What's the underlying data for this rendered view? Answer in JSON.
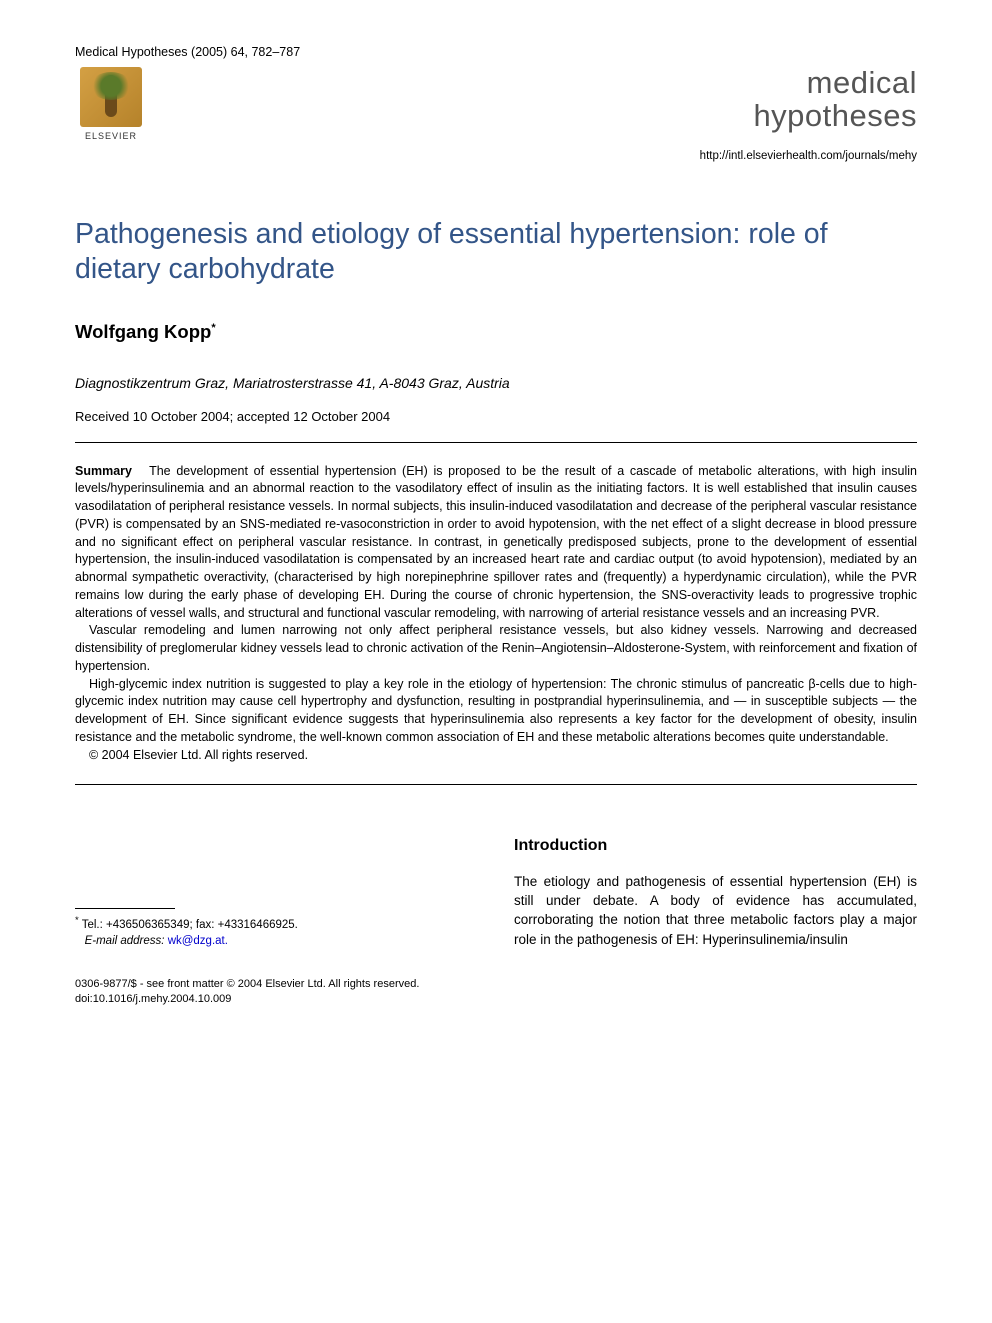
{
  "header": {
    "citation": "Medical Hypotheses (2005) 64, 782–787",
    "publisher_name": "ELSEVIER",
    "journal_name_line1": "medical",
    "journal_name_line2": "hypotheses",
    "journal_url": "http://intl.elsevierhealth.com/journals/mehy"
  },
  "article": {
    "title": "Pathogenesis and etiology of essential hypertension: role of dietary carbohydrate",
    "author": "Wolfgang Kopp",
    "author_marker": "*",
    "affiliation": "Diagnostikzentrum Graz, Mariatrosterstrasse 41, A-8043 Graz, Austria",
    "dates": "Received 10 October 2004; accepted 12 October 2004"
  },
  "summary": {
    "label": "Summary",
    "p1": "The development of essential hypertension (EH) is proposed to be the result of a cascade of metabolic alterations, with high insulin levels/hyperinsulinemia and an abnormal reaction to the vasodilatory effect of insulin as the initiating factors. It is well established that insulin causes vasodilatation of peripheral resistance vessels. In normal subjects, this insulin-induced vasodilatation and decrease of the peripheral vascular resistance (PVR) is compensated by an SNS-mediated re-vasoconstriction in order to avoid hypotension, with the net effect of a slight decrease in blood pressure and no significant effect on peripheral vascular resistance. In contrast, in genetically predisposed subjects, prone to the development of essential hypertension, the insulin-induced vasodilatation is compensated by an increased heart rate and cardiac output (to avoid hypotension), mediated by an abnormal sympathetic overactivity, (characterised by high norepinephrine spillover rates and (frequently) a hyperdynamic circulation), while the PVR remains low during the early phase of developing EH. During the course of chronic hypertension, the SNS-overactivity leads to progressive trophic alterations of vessel walls, and structural and functional vascular remodeling, with narrowing of arterial resistance vessels and an increasing PVR.",
    "p2": "Vascular remodeling and lumen narrowing not only affect peripheral resistance vessels, but also kidney vessels. Narrowing and decreased distensibility of preglomerular kidney vessels lead to chronic activation of the Renin–Angiotensin–Aldosterone-System, with reinforcement and fixation of hypertension.",
    "p3": "High-glycemic index nutrition is suggested to play a key role in the etiology of hypertension: The chronic stimulus of pancreatic β-cells due to high-glycemic index nutrition may cause cell hypertrophy and dysfunction, resulting in postprandial hyperinsulinemia, and — in susceptible subjects — the development of EH. Since significant evidence suggests that hyperinsulinemia also represents a key factor for the development of obesity, insulin resistance and the metabolic syndrome, the well-known common association of EH and these metabolic alterations becomes quite understandable.",
    "copyright": "© 2004 Elsevier Ltd. All rights reserved."
  },
  "footnote": {
    "marker": "*",
    "contact": "Tel.: +436506365349; fax: +43316466925.",
    "email_label": "E-mail address:",
    "email": "wk@dzg.at."
  },
  "body": {
    "section_heading": "Introduction",
    "intro_p1": "The etiology and pathogenesis of essential hypertension (EH) is still under debate. A body of evidence has accumulated, corroborating the notion that three metabolic factors play a major role in the pathogenesis of EH: Hyperinsulinemia/insulin"
  },
  "footer": {
    "line1": "0306-9877/$ - see front matter © 2004 Elsevier Ltd. All rights reserved.",
    "line2": "doi:10.1016/j.mehy.2004.10.009"
  },
  "colors": {
    "title_color": "#335588",
    "link_color": "#0000cc",
    "text_color": "#000000",
    "background": "#ffffff"
  }
}
